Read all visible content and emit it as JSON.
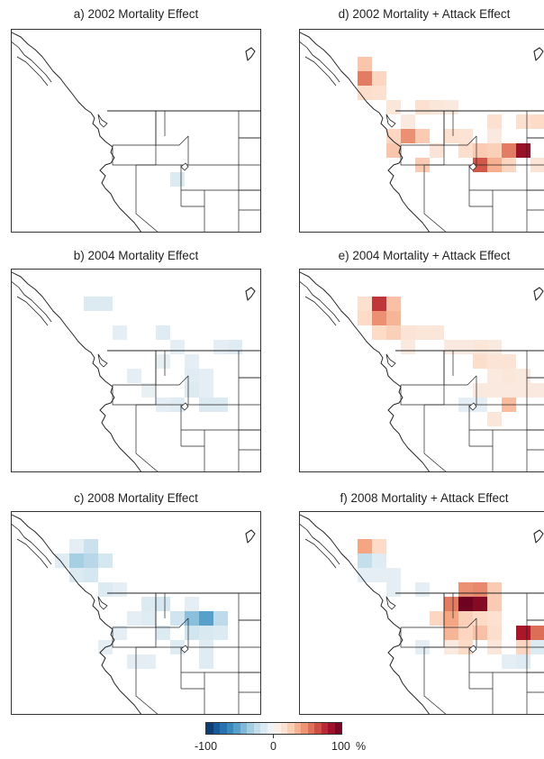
{
  "panels": [
    {
      "id": "a",
      "title": "a) 2002 Mortality Effect",
      "cells": [
        [
          10,
          8,
          -14
        ]
      ]
    },
    {
      "id": "b",
      "title": "b) 2004 Mortality Effect",
      "cells": [
        [
          4,
          0,
          -14
        ],
        [
          5,
          0,
          -14
        ],
        [
          6,
          2,
          -10
        ],
        [
          9,
          2,
          -12
        ],
        [
          13,
          3,
          -10
        ],
        [
          14,
          3,
          -12
        ],
        [
          10,
          3,
          -10
        ],
        [
          9,
          4,
          -8
        ],
        [
          11,
          4,
          -10
        ],
        [
          7,
          5,
          -10
        ],
        [
          11,
          5,
          -12
        ],
        [
          12,
          5,
          -10
        ],
        [
          8,
          6,
          -8
        ],
        [
          11,
          6,
          -14
        ],
        [
          12,
          6,
          -10
        ],
        [
          9,
          7,
          -10
        ],
        [
          10,
          7,
          -12
        ],
        [
          12,
          7,
          -14
        ],
        [
          13,
          7,
          -14
        ]
      ]
    },
    {
      "id": "c",
      "title": "c) 2008 Mortality Effect",
      "cells": [
        [
          3,
          0,
          -10
        ],
        [
          4,
          0,
          -22
        ],
        [
          2,
          1,
          -12
        ],
        [
          3,
          1,
          -34
        ],
        [
          4,
          1,
          -28
        ],
        [
          5,
          1,
          -18
        ],
        [
          3,
          2,
          -14
        ],
        [
          4,
          2,
          -18
        ],
        [
          5,
          3,
          -14
        ],
        [
          6,
          3,
          -10
        ],
        [
          8,
          4,
          -14
        ],
        [
          9,
          4,
          -18
        ],
        [
          11,
          4,
          -10
        ],
        [
          7,
          5,
          -10
        ],
        [
          8,
          5,
          -12
        ],
        [
          10,
          5,
          -20
        ],
        [
          11,
          5,
          -42
        ],
        [
          12,
          5,
          -55
        ],
        [
          13,
          5,
          -26
        ],
        [
          6,
          6,
          -10
        ],
        [
          9,
          6,
          -14
        ],
        [
          11,
          6,
          -20
        ],
        [
          12,
          6,
          -16
        ],
        [
          13,
          6,
          -14
        ],
        [
          5,
          7,
          -10
        ],
        [
          10,
          7,
          -12
        ],
        [
          12,
          7,
          -12
        ],
        [
          7,
          8,
          -10
        ],
        [
          8,
          8,
          -10
        ],
        [
          12,
          8,
          -12
        ]
      ]
    },
    {
      "id": "d",
      "title": "d) 2002 Mortality + Attack Effect",
      "cells": [
        [
          3,
          0,
          28
        ],
        [
          3,
          1,
          52
        ],
        [
          4,
          1,
          22
        ],
        [
          3,
          2,
          18
        ],
        [
          4,
          2,
          16
        ],
        [
          5,
          3,
          12
        ],
        [
          7,
          3,
          16
        ],
        [
          8,
          3,
          12
        ],
        [
          9,
          3,
          10
        ],
        [
          12,
          4,
          16
        ],
        [
          14,
          4,
          16
        ],
        [
          15,
          4,
          20
        ],
        [
          6,
          4,
          10
        ],
        [
          5,
          5,
          22
        ],
        [
          6,
          5,
          46
        ],
        [
          7,
          5,
          26
        ],
        [
          9,
          5,
          16
        ],
        [
          10,
          5,
          14
        ],
        [
          12,
          5,
          10
        ],
        [
          5,
          6,
          28
        ],
        [
          8,
          6,
          14
        ],
        [
          10,
          6,
          18
        ],
        [
          11,
          6,
          26
        ],
        [
          12,
          6,
          24
        ],
        [
          13,
          6,
          52
        ],
        [
          14,
          6,
          86
        ],
        [
          7,
          7,
          26
        ],
        [
          11,
          7,
          62
        ],
        [
          12,
          7,
          36
        ],
        [
          13,
          7,
          22
        ],
        [
          15,
          7,
          14
        ]
      ]
    },
    {
      "id": "e",
      "title": "e) 2004 Mortality + Attack Effect",
      "cells": [
        [
          3,
          0,
          16
        ],
        [
          4,
          0,
          72
        ],
        [
          5,
          0,
          30
        ],
        [
          3,
          1,
          20
        ],
        [
          4,
          1,
          46
        ],
        [
          5,
          1,
          34
        ],
        [
          4,
          2,
          20
        ],
        [
          5,
          2,
          24
        ],
        [
          6,
          2,
          14
        ],
        [
          7,
          2,
          12
        ],
        [
          8,
          2,
          12
        ],
        [
          10,
          3,
          10
        ],
        [
          11,
          3,
          12
        ],
        [
          12,
          3,
          10
        ],
        [
          6,
          3,
          10
        ],
        [
          9,
          3,
          10
        ],
        [
          11,
          4,
          18
        ],
        [
          12,
          4,
          14
        ],
        [
          13,
          4,
          14
        ],
        [
          12,
          5,
          10
        ],
        [
          13,
          5,
          12
        ],
        [
          14,
          5,
          10
        ],
        [
          11,
          6,
          10
        ],
        [
          12,
          6,
          10
        ],
        [
          13,
          6,
          10
        ],
        [
          14,
          6,
          10
        ],
        [
          15,
          6,
          10
        ],
        [
          10,
          7,
          -10
        ],
        [
          11,
          7,
          -10
        ],
        [
          13,
          7,
          32
        ],
        [
          12,
          8,
          12
        ]
      ]
    },
    {
      "id": "f",
      "title": "f) 2008 Mortality + Attack Effect",
      "cells": [
        [
          3,
          0,
          40
        ],
        [
          4,
          0,
          20
        ],
        [
          3,
          1,
          -24
        ],
        [
          4,
          1,
          -12
        ],
        [
          3,
          2,
          -10
        ],
        [
          4,
          2,
          -10
        ],
        [
          5,
          2,
          -10
        ],
        [
          5,
          3,
          -10
        ],
        [
          7,
          3,
          -10
        ],
        [
          10,
          3,
          46
        ],
        [
          11,
          3,
          48
        ],
        [
          12,
          3,
          26
        ],
        [
          9,
          4,
          52
        ],
        [
          10,
          4,
          98
        ],
        [
          11,
          4,
          92
        ],
        [
          12,
          4,
          26
        ],
        [
          8,
          5,
          22
        ],
        [
          9,
          5,
          40
        ],
        [
          10,
          5,
          24
        ],
        [
          11,
          5,
          20
        ],
        [
          12,
          5,
          16
        ],
        [
          9,
          6,
          34
        ],
        [
          10,
          6,
          22
        ],
        [
          11,
          6,
          30
        ],
        [
          12,
          6,
          18
        ],
        [
          14,
          6,
          82
        ],
        [
          15,
          6,
          56
        ],
        [
          7,
          7,
          -10
        ],
        [
          9,
          7,
          10
        ],
        [
          10,
          7,
          20
        ],
        [
          12,
          7,
          12
        ],
        [
          14,
          7,
          22
        ],
        [
          15,
          7,
          -14
        ],
        [
          13,
          8,
          -10
        ],
        [
          14,
          8,
          -12
        ]
      ]
    }
  ],
  "colorbar": {
    "min_label": "-100",
    "mid_label": "0",
    "max_label": "100",
    "unit": "%",
    "range": [
      -100,
      100
    ],
    "colors": [
      "#053061",
      "#2166ac",
      "#4393c3",
      "#92c5de",
      "#d1e5f0",
      "#f7f7f7",
      "#fddbc7",
      "#f4a582",
      "#d6604d",
      "#b2182b",
      "#67001f"
    ]
  }
}
